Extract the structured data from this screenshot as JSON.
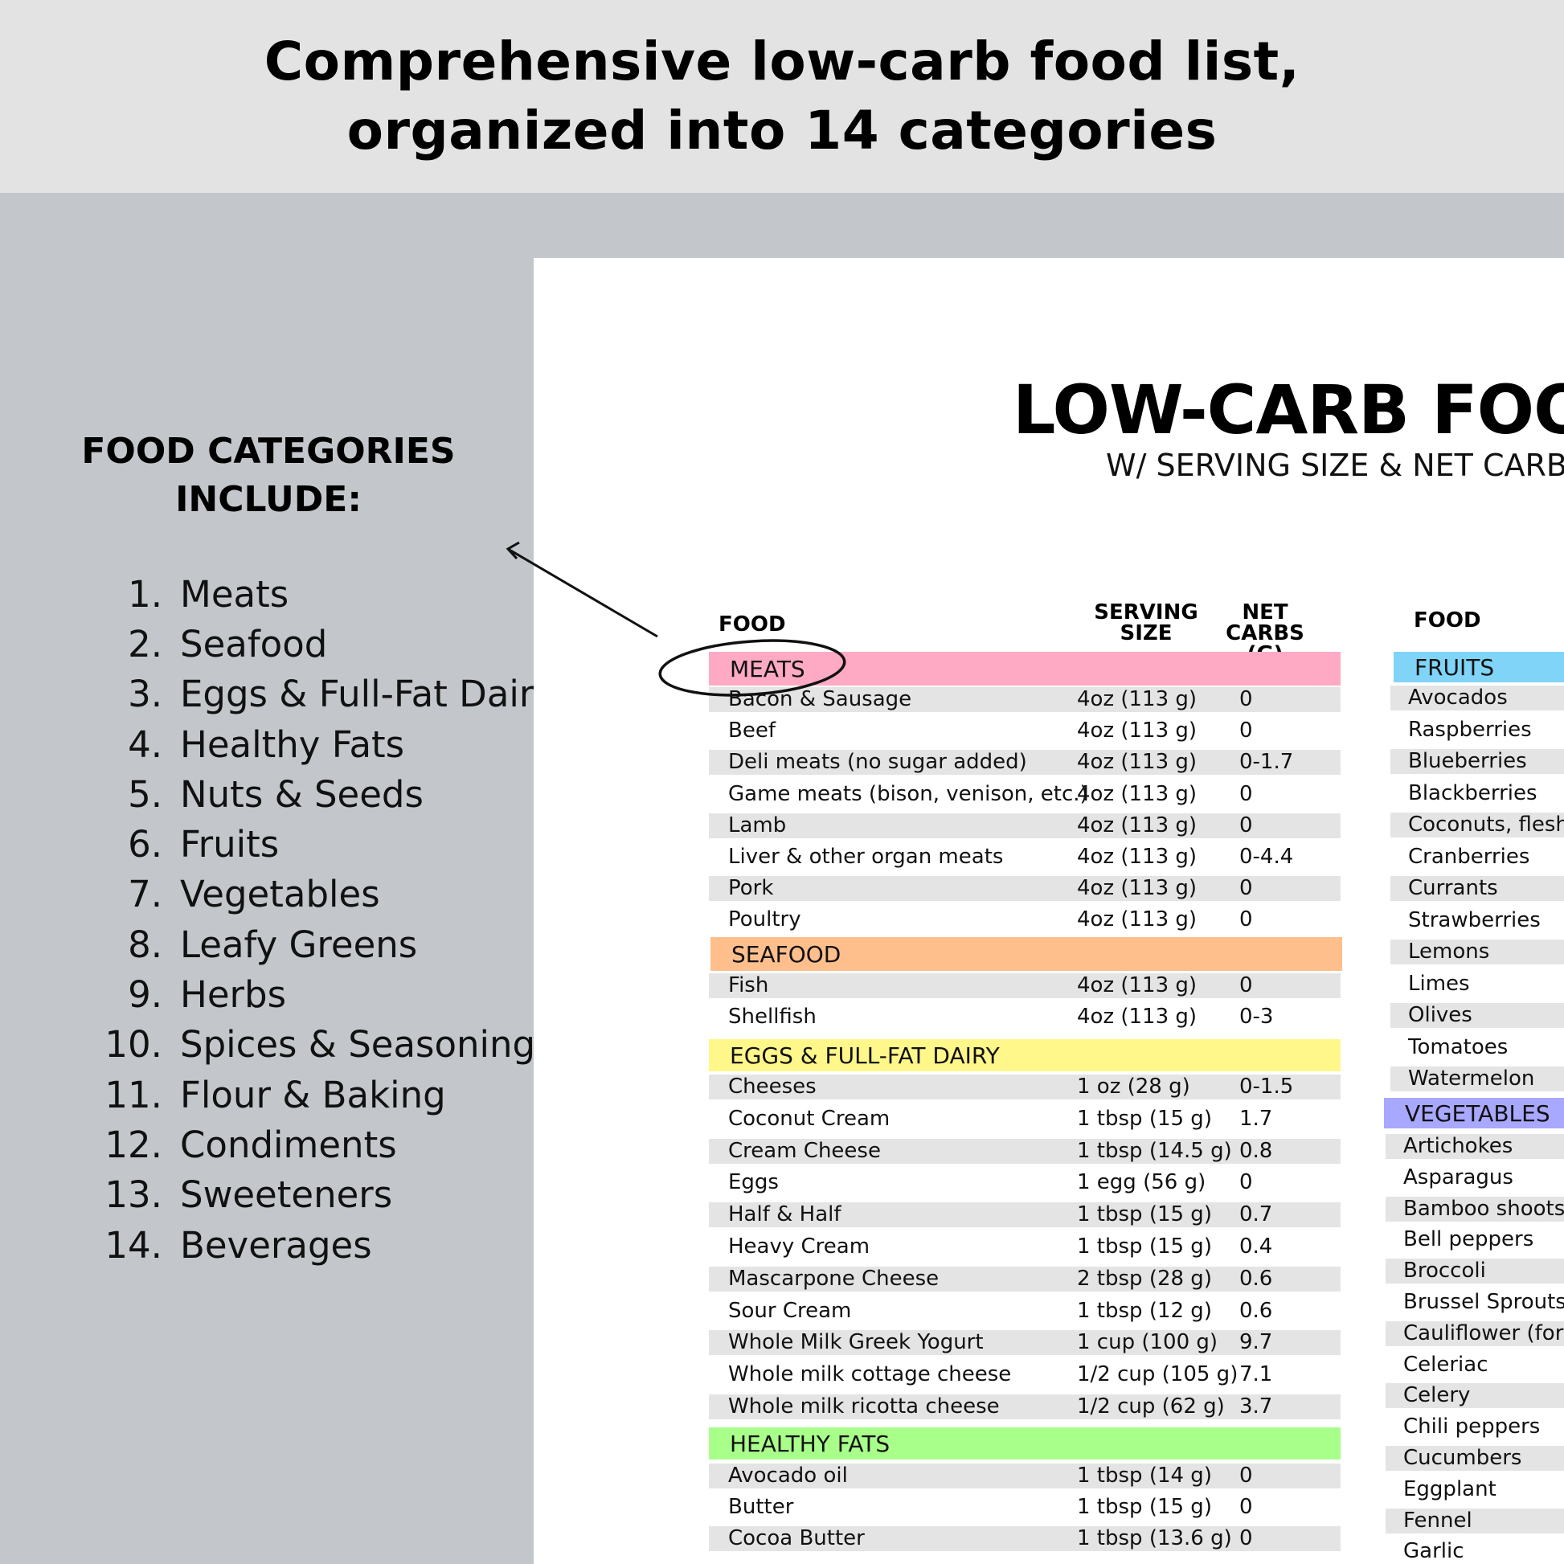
{
  "banner": {
    "line1": "Comprehensive low-carb food list,",
    "line2": "organized into 14 categories"
  },
  "categories": {
    "heading_line1": "FOOD CATEGORIES",
    "heading_line2": "INCLUDE:",
    "items": [
      {
        "num": "1.",
        "name": "Meats"
      },
      {
        "num": "2.",
        "name": "Seafood"
      },
      {
        "num": "3.",
        "name": "Eggs & Full-Fat Dairy"
      },
      {
        "num": "4.",
        "name": "Healthy Fats"
      },
      {
        "num": "5.",
        "name": "Nuts & Seeds"
      },
      {
        "num": "6.",
        "name": "Fruits"
      },
      {
        "num": "7.",
        "name": "Vegetables"
      },
      {
        "num": "8.",
        "name": "Leafy Greens"
      },
      {
        "num": "9.",
        "name": "Herbs"
      },
      {
        "num": "10.",
        "name": "Spices & Seasonings"
      },
      {
        "num": "11.",
        "name": "Flour & Baking"
      },
      {
        "num": "12.",
        "name": "Condiments"
      },
      {
        "num": "13.",
        "name": "Sweeteners"
      },
      {
        "num": "14.",
        "name": "Beverages"
      }
    ]
  },
  "document": {
    "title": "LOW-CARB FOOD",
    "subtitle": "W/ SERVING SIZE & NET CARB",
    "headers": {
      "food": "FOOD",
      "serving_line1": "SERVING",
      "serving_line2": "SIZE",
      "carbs_line1": "NET CARBS",
      "carbs_line2": "(G)",
      "food_right": "FOOD"
    },
    "colors": {
      "meats": "#ffaac4",
      "seafood": "#ffbf8c",
      "dairy": "#fff78a",
      "fats": "#a8ff8a",
      "fruits": "#7fd4f7",
      "vegetables": "#a8a8ff"
    },
    "sections": {
      "meats": "MEATS",
      "seafood": "SEAFOOD",
      "dairy": "EGGS & FULL-FAT DAIRY",
      "fats": "HEALTHY FATS",
      "fruits": "FRUITS",
      "vegetables": "VEGETABLES"
    },
    "meats": [
      {
        "food": "Bacon & Sausage",
        "serving": "4oz (113 g)",
        "carbs": "0"
      },
      {
        "food": "Beef",
        "serving": "4oz (113 g)",
        "carbs": "0"
      },
      {
        "food": "Deli meats (no sugar added)",
        "serving": "4oz (113 g)",
        "carbs": "0-1.7"
      },
      {
        "food": "Game meats (bison, venison, etc.)",
        "serving": "4oz (113 g)",
        "carbs": "0"
      },
      {
        "food": "Lamb",
        "serving": "4oz (113 g)",
        "carbs": "0"
      },
      {
        "food": "Liver & other organ meats",
        "serving": "4oz (113 g)",
        "carbs": "0-4.4"
      },
      {
        "food": "Pork",
        "serving": "4oz (113 g)",
        "carbs": "0"
      },
      {
        "food": "Poultry",
        "serving": "4oz (113 g)",
        "carbs": "0"
      }
    ],
    "seafood": [
      {
        "food": "Fish",
        "serving": "4oz (113 g)",
        "carbs": "0"
      },
      {
        "food": "Shellfish",
        "serving": "4oz (113 g)",
        "carbs": "0-3"
      }
    ],
    "dairy": [
      {
        "food": "Cheeses",
        "serving": "1 oz (28 g)",
        "carbs": "0-1.5"
      },
      {
        "food": "Coconut Cream",
        "serving": "1 tbsp (15 g)",
        "carbs": "1.7"
      },
      {
        "food": "Cream Cheese",
        "serving": "1 tbsp (14.5 g)",
        "carbs": "0.8"
      },
      {
        "food": "Eggs",
        "serving": "1 egg (56 g)",
        "carbs": "0"
      },
      {
        "food": "Half & Half",
        "serving": "1 tbsp (15 g)",
        "carbs": "0.7"
      },
      {
        "food": "Heavy Cream",
        "serving": "1 tbsp (15 g)",
        "carbs": "0.4"
      },
      {
        "food": "Mascarpone Cheese",
        "serving": "2 tbsp (28 g)",
        "carbs": "0.6"
      },
      {
        "food": "Sour Cream",
        "serving": "1 tbsp (12 g)",
        "carbs": "0.6"
      },
      {
        "food": "Whole Milk Greek Yogurt",
        "serving": "1 cup (100 g)",
        "carbs": "9.7"
      },
      {
        "food": "Whole milk cottage cheese",
        "serving": "1/2 cup (105  g)",
        "carbs": "7.1"
      },
      {
        "food": "Whole milk ricotta cheese",
        "serving": "1/2 cup (62 g)",
        "carbs": "3.7"
      }
    ],
    "fats": [
      {
        "food": "Avocado oil",
        "serving": "1 tbsp (14 g)",
        "carbs": "0"
      },
      {
        "food": "Butter",
        "serving": "1 tbsp (15 g)",
        "carbs": "0"
      },
      {
        "food": "Cocoa Butter",
        "serving": "1 tbsp (13.6 g)",
        "carbs": "0"
      }
    ],
    "fruits": [
      "Avocados",
      "Raspberries",
      "Blueberries",
      "Blackberries",
      "Coconuts, flesh",
      "Cranberries",
      "Currants",
      "Strawberries",
      "Lemons",
      "Limes",
      "Olives",
      "Tomatoes",
      "Watermelon"
    ],
    "vegetables": [
      "Artichokes",
      "Asparagus",
      "Bamboo shoots",
      "Bell peppers",
      "Broccoli",
      "Brussel Sprouts",
      "Cauliflower (for c",
      "Celeriac",
      "Celery",
      "Chili peppers",
      "Cucumbers",
      "Eggplant",
      "Fennel",
      "Garlic"
    ]
  }
}
